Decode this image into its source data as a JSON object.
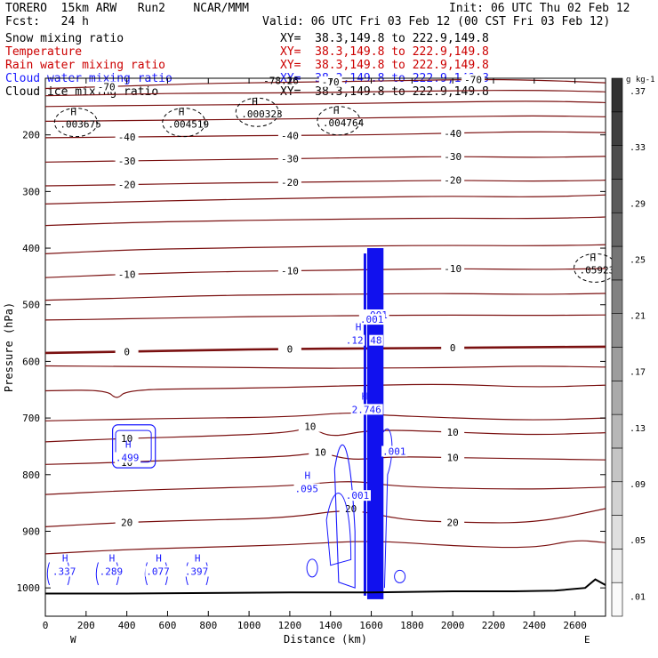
{
  "header": {
    "model": "TORERO  15km ARW   Run2    NCAR/MMM",
    "init": "Init: 06 UTC Thu 02 Feb 12",
    "fcst": "Fcst:   24 h",
    "valid": "Valid: 06 UTC Fri 03 Feb 12 (00 CST Fri 03 Feb 12)",
    "fields": [
      {
        "name": "Snow mixing ratio",
        "xy": "XY=  38.3,149.8 to 222.9,149.8",
        "color": "#000000"
      },
      {
        "name": "Temperature",
        "xy": "XY=  38.3,149.8 to 222.9,149.8",
        "color": "#cc0000"
      },
      {
        "name": "Rain water mixing ratio",
        "xy": "XY=  38.3,149.8 to 222.9,149.8",
        "color": "#cc0000"
      },
      {
        "name": "Cloud water mixing ratio",
        "xy": "XY=  38.3,149.8 to 222.9,149.8",
        "color": "#1a1aff"
      },
      {
        "name": "Cloud ice mixing ratio",
        "xy": "XY=  38.3,149.8 to 222.9,149.8",
        "color": "#000000"
      }
    ]
  },
  "chart_data": {
    "type": "contour-cross-section",
    "xlabel": "Distance (km)",
    "ylabel": "Pressure (hPa)",
    "xlim": [
      0,
      2750
    ],
    "ylim": [
      1050,
      100
    ],
    "xticks": [
      0,
      200,
      400,
      600,
      800,
      1000,
      1200,
      1400,
      1600,
      1800,
      2000,
      2200,
      2400,
      2600
    ],
    "yticks": [
      200,
      300,
      400,
      500,
      600,
      700,
      800,
      900,
      1000
    ],
    "x_end_labels": {
      "left": "W",
      "right": "E"
    },
    "colorbar": {
      "unit": "g kg-1",
      "ticks": [
        ".01",
        ".05",
        ".09",
        ".13",
        ".17",
        ".21",
        ".25",
        ".29",
        ".33",
        ".37"
      ],
      "levels": 16
    },
    "temperature_contours": [
      {
        "label": "-70",
        "p": [
          [
            0,
            118
          ],
          [
            300,
            115
          ],
          [
            700,
            110
          ],
          [
            1000,
            108
          ],
          [
            1400,
            106
          ],
          [
            1800,
            104
          ],
          [
            2100,
            102
          ],
          [
            2400,
            103
          ],
          [
            2750,
            108
          ]
        ]
      },
      {
        "label": "",
        "p": [
          [
            0,
            131
          ],
          [
            400,
            128
          ],
          [
            800,
            126
          ],
          [
            1200,
            126
          ],
          [
            1600,
            124
          ],
          [
            2000,
            122
          ],
          [
            2400,
            121
          ],
          [
            2750,
            124
          ]
        ]
      },
      {
        "label": "",
        "p": [
          [
            0,
            150
          ],
          [
            400,
            148
          ],
          [
            800,
            147
          ],
          [
            1200,
            146
          ],
          [
            1600,
            144
          ],
          [
            2000,
            142
          ],
          [
            2400,
            140
          ],
          [
            2750,
            143
          ]
        ]
      },
      {
        "label": "",
        "p": [
          [
            0,
            176
          ],
          [
            400,
            175
          ],
          [
            800,
            173
          ],
          [
            1200,
            172
          ],
          [
            1600,
            170
          ],
          [
            2000,
            168
          ],
          [
            2400,
            166
          ],
          [
            2750,
            168
          ]
        ]
      },
      {
        "label": "-40",
        "p": [
          [
            0,
            205
          ],
          [
            400,
            204
          ],
          [
            800,
            202
          ],
          [
            1200,
            201
          ],
          [
            1600,
            200
          ],
          [
            2000,
            197
          ],
          [
            2400,
            194
          ],
          [
            2750,
            196
          ]
        ]
      },
      {
        "label": "-30",
        "p": [
          [
            0,
            248
          ],
          [
            400,
            246
          ],
          [
            800,
            244
          ],
          [
            1200,
            242
          ],
          [
            1600,
            240
          ],
          [
            2000,
            238
          ],
          [
            2400,
            240
          ],
          [
            2750,
            238
          ]
        ]
      },
      {
        "label": "-20",
        "p": [
          [
            0,
            290
          ],
          [
            400,
            288
          ],
          [
            800,
            285
          ],
          [
            1200,
            284
          ],
          [
            1600,
            282
          ],
          [
            2000,
            280
          ],
          [
            2400,
            282
          ],
          [
            2750,
            280
          ]
        ]
      },
      {
        "label": "",
        "p": [
          [
            0,
            322
          ],
          [
            400,
            318
          ],
          [
            800,
            315
          ],
          [
            1200,
            312
          ],
          [
            1600,
            310
          ],
          [
            2000,
            308
          ],
          [
            2400,
            310
          ],
          [
            2750,
            306
          ]
        ]
      },
      {
        "label": "",
        "p": [
          [
            0,
            360
          ],
          [
            400,
            355
          ],
          [
            800,
            352
          ],
          [
            1200,
            350
          ],
          [
            1600,
            348
          ],
          [
            2000,
            347
          ],
          [
            2400,
            348
          ],
          [
            2750,
            345
          ]
        ]
      },
      {
        "label": "",
        "p": [
          [
            0,
            410
          ],
          [
            400,
            403
          ],
          [
            800,
            400
          ],
          [
            1200,
            398
          ],
          [
            1600,
            396
          ],
          [
            2000,
            395
          ],
          [
            2400,
            396
          ],
          [
            2750,
            394
          ]
        ]
      },
      {
        "label": "-10",
        "p": [
          [
            0,
            452
          ],
          [
            400,
            446
          ],
          [
            800,
            442
          ],
          [
            1200,
            440
          ],
          [
            1600,
            438
          ],
          [
            2000,
            436
          ],
          [
            2400,
            438
          ],
          [
            2750,
            436
          ]
        ]
      },
      {
        "label": "",
        "p": [
          [
            0,
            492
          ],
          [
            400,
            488
          ],
          [
            800,
            484
          ],
          [
            1200,
            482
          ],
          [
            1600,
            481
          ],
          [
            2000,
            480
          ],
          [
            2400,
            482
          ],
          [
            2750,
            480
          ]
        ]
      },
      {
        "label": "",
        "p": [
          [
            0,
            527
          ],
          [
            400,
            525
          ],
          [
            800,
            522
          ],
          [
            1200,
            520
          ],
          [
            1600,
            519
          ],
          [
            2000,
            518
          ],
          [
            2400,
            519
          ],
          [
            2750,
            518
          ]
        ]
      },
      {
        "label": "0",
        "p": [
          [
            0,
            585
          ],
          [
            400,
            583
          ],
          [
            800,
            580
          ],
          [
            1200,
            578
          ],
          [
            1600,
            577
          ],
          [
            2000,
            576
          ],
          [
            2400,
            575
          ],
          [
            2750,
            574
          ]
        ]
      },
      {
        "label": "",
        "p": [
          [
            0,
            608
          ],
          [
            400,
            609
          ],
          [
            800,
            610
          ],
          [
            1200,
            612
          ],
          [
            1600,
            612
          ],
          [
            2000,
            611
          ],
          [
            2400,
            608
          ],
          [
            2750,
            610
          ]
        ]
      },
      {
        "label": "",
        "p": [
          [
            0,
            652
          ],
          [
            300,
            650
          ],
          [
            350,
            668
          ],
          [
            400,
            650
          ],
          [
            800,
            648
          ],
          [
            1200,
            646
          ],
          [
            1600,
            642
          ],
          [
            2000,
            640
          ],
          [
            2400,
            646
          ],
          [
            2750,
            642
          ]
        ]
      },
      {
        "label": "",
        "p": [
          [
            0,
            705
          ],
          [
            400,
            702
          ],
          [
            800,
            700
          ],
          [
            1200,
            698
          ],
          [
            1500,
            690
          ],
          [
            1600,
            694
          ],
          [
            2000,
            700
          ],
          [
            2400,
            704
          ],
          [
            2750,
            700
          ]
        ]
      },
      {
        "label": "10",
        "p": [
          [
            0,
            742
          ],
          [
            400,
            736
          ],
          [
            800,
            732
          ],
          [
            1200,
            726
          ],
          [
            1300,
            715
          ],
          [
            1400,
            735
          ],
          [
            1600,
            720
          ],
          [
            2000,
            725
          ],
          [
            2400,
            730
          ],
          [
            2750,
            726
          ]
        ]
      },
      {
        "label": "10",
        "p": [
          [
            0,
            782
          ],
          [
            400,
            778
          ],
          [
            800,
            772
          ],
          [
            1200,
            768
          ],
          [
            1350,
            760
          ],
          [
            1500,
            775
          ],
          [
            1700,
            768
          ],
          [
            2000,
            770
          ],
          [
            2400,
            772
          ],
          [
            2750,
            774
          ]
        ]
      },
      {
        "label": "",
        "p": [
          [
            0,
            835
          ],
          [
            400,
            828
          ],
          [
            800,
            824
          ],
          [
            1200,
            820
          ],
          [
            1500,
            810
          ],
          [
            1700,
            820
          ],
          [
            2000,
            824
          ],
          [
            2400,
            826
          ],
          [
            2750,
            822
          ]
        ]
      },
      {
        "label": "20",
        "p": [
          [
            0,
            892
          ],
          [
            400,
            884
          ],
          [
            800,
            880
          ],
          [
            1200,
            876
          ],
          [
            1500,
            860
          ],
          [
            1750,
            880
          ],
          [
            2000,
            884
          ],
          [
            2400,
            886
          ],
          [
            2750,
            860
          ]
        ]
      },
      {
        "label": "",
        "p": [
          [
            0,
            940
          ],
          [
            400,
            932
          ],
          [
            800,
            928
          ],
          [
            1200,
            924
          ],
          [
            1600,
            916
          ],
          [
            2000,
            926
          ],
          [
            2400,
            930
          ],
          [
            2600,
            915
          ],
          [
            2750,
            920
          ]
        ]
      }
    ],
    "dashed_regions": [
      {
        "label": "H",
        "value": ".003675",
        "x": 150,
        "p": 178
      },
      {
        "label": "H",
        "value": ".004519",
        "x": 680,
        "p": 178
      },
      {
        "label": "H",
        "value": ".000323",
        "x": 1040,
        "p": 160
      },
      {
        "label": "H",
        "value": ".004764",
        "x": 1440,
        "p": 175
      },
      {
        "label": "H",
        "value": ".05923",
        "x": 2700,
        "p": 435
      }
    ],
    "title_text_near_top": "-78.26",
    "cloud_water_maxima": [
      {
        "label": "H",
        "value": ".499",
        "x": 410,
        "p": 765
      },
      {
        "label": "H",
        "value": ".095",
        "x": 1290,
        "p": 820
      },
      {
        "label": "H",
        "value": ".337",
        "x": 100,
        "p": 966
      },
      {
        "label": "H",
        "value": ".289",
        "x": 330,
        "p": 966
      },
      {
        "label": "H",
        "value": ".077",
        "x": 560,
        "p": 966
      },
      {
        "label": "H",
        "value": ".397",
        "x": 750,
        "p": 966
      },
      {
        "label": "",
        "value": ".001",
        "x": 1630,
        "p": 513
      },
      {
        "label": "",
        "value": ".001",
        "x": 1610,
        "p": 521
      },
      {
        "label": "H",
        "value": ".12",
        "x": 1540,
        "p": 558
      },
      {
        "label": "",
        "value": "48",
        "x": 1660,
        "p": 558
      },
      {
        "label": "H",
        "value": "2.746",
        "x": 1570,
        "p": 680
      },
      {
        "label": "",
        "value": ".001",
        "x": 1720,
        "p": 754
      },
      {
        "label": "",
        "value": ".001",
        "x": 1540,
        "p": 832
      }
    ],
    "snow_column": {
      "x": [
        1580,
        1660
      ],
      "p_top": 400,
      "p_bottom": 1020
    },
    "terrain": [
      [
        0,
        1010
      ],
      [
        400,
        1010
      ],
      [
        800,
        1009
      ],
      [
        1200,
        1008
      ],
      [
        1600,
        1008
      ],
      [
        2000,
        1006
      ],
      [
        2300,
        1006
      ],
      [
        2500,
        1005
      ],
      [
        2650,
        1000
      ],
      [
        2700,
        985
      ],
      [
        2750,
        995
      ]
    ]
  }
}
